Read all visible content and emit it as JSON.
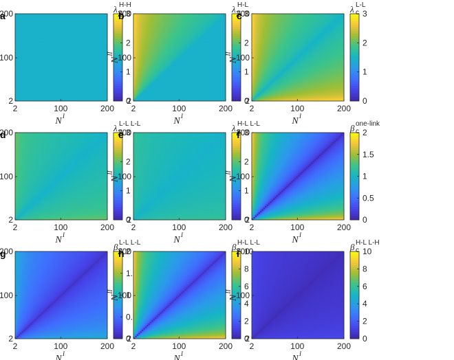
{
  "figure": {
    "panel_order": [
      "a",
      "b",
      "c",
      "d",
      "e",
      "f",
      "g",
      "h",
      "i"
    ]
  },
  "colormap": [
    "#3e26a8",
    "#4743e8",
    "#3f6ffe",
    "#2c99eb",
    "#17b5c5",
    "#3cc48b",
    "#9fbe35",
    "#f4c63b",
    "#f9fb0e"
  ],
  "panel_base_color": "#3f8bf0",
  "chart_data": [
    {
      "type": "heatmap",
      "label": "a",
      "cbar_symbol": "λ",
      "cbar_sub": "c",
      "cbar_sup": "H-H",
      "xlabel": "N",
      "xlabel_sup": "I",
      "ylabel": "N",
      "ylabel_sup": "II",
      "x_ticks": [
        "2",
        "100",
        "200"
      ],
      "y_ticks": [
        "2",
        "100",
        "200"
      ],
      "xlim": [
        2,
        200
      ],
      "ylim": [
        2,
        200
      ],
      "cbar_lim": [
        0,
        3
      ],
      "cbar_ticks": [
        "0",
        "1",
        "2",
        "3"
      ],
      "pattern": "uniform",
      "approx_value": 1.45
    },
    {
      "type": "heatmap",
      "label": "b",
      "cbar_symbol": "λ",
      "cbar_sub": "c",
      "cbar_sup": "H-L",
      "xlabel": "N",
      "xlabel_sup": "I",
      "ylabel": "N",
      "ylabel_sup": "II",
      "x_ticks": [
        "2",
        "100",
        "200"
      ],
      "y_ticks": [
        "2",
        "100",
        "200"
      ],
      "xlim": [
        2,
        200
      ],
      "ylim": [
        2,
        200
      ],
      "cbar_lim": [
        0,
        3
      ],
      "cbar_ticks": [
        "0",
        "1",
        "2",
        "3"
      ],
      "pattern": "upper-left-high",
      "min_value": 1.45,
      "max_value": 2.9
    },
    {
      "type": "heatmap",
      "label": "c",
      "cbar_symbol": "λ",
      "cbar_sub": "c",
      "cbar_sup": "L-L",
      "xlabel": "N",
      "xlabel_sup": "I",
      "ylabel": "N",
      "ylabel_sup": "II",
      "x_ticks": [
        "2",
        "100",
        "200"
      ],
      "y_ticks": [
        "2",
        "100",
        "200"
      ],
      "xlim": [
        2,
        200
      ],
      "ylim": [
        2,
        200
      ],
      "cbar_lim": [
        0,
        3
      ],
      "cbar_ticks": [
        "0",
        "1",
        "2",
        "3"
      ],
      "pattern": "off-diagonal-high",
      "min_value": 1.45,
      "max_value": 2.9
    },
    {
      "type": "heatmap",
      "label": "d",
      "cbar_symbol": "λ",
      "cbar_sub": "c",
      "cbar_sup": "L-L L-L",
      "xlabel": "N",
      "xlabel_sup": "I",
      "ylabel": "N",
      "ylabel_sup": "II",
      "x_ticks": [
        "2",
        "100",
        "200"
      ],
      "y_ticks": [
        "2",
        "100",
        "200"
      ],
      "xlim": [
        2,
        200
      ],
      "ylim": [
        2,
        200
      ],
      "cbar_lim": [
        0,
        3
      ],
      "cbar_ticks": [
        "0",
        "1",
        "2",
        "3"
      ],
      "pattern": "off-diagonal-high",
      "min_value": 1.45,
      "max_value": 2.1
    },
    {
      "type": "heatmap",
      "label": "e",
      "cbar_symbol": "λ",
      "cbar_sub": "c",
      "cbar_sup": "H-L L-L",
      "xlabel": "N",
      "xlabel_sup": "I",
      "ylabel": "N",
      "ylabel_sup": "II",
      "x_ticks": [
        "2",
        "100",
        "200"
      ],
      "y_ticks": [
        "2",
        "100",
        "200"
      ],
      "xlim": [
        2,
        200
      ],
      "ylim": [
        2,
        200
      ],
      "cbar_lim": [
        0,
        3
      ],
      "cbar_ticks": [
        "0",
        "1",
        "2",
        "3"
      ],
      "pattern": "off-diagonal-high",
      "min_value": 1.45,
      "max_value": 1.85
    },
    {
      "type": "heatmap",
      "label": "f",
      "cbar_symbol": "β",
      "cbar_sub": "c",
      "cbar_sup": "one-link",
      "xlabel": "N",
      "xlabel_sup": "I",
      "ylabel": "N",
      "ylabel_sup": "II",
      "x_ticks": [
        "2",
        "100",
        "200"
      ],
      "y_ticks": [
        "2",
        "100",
        "200"
      ],
      "xlim": [
        2,
        200
      ],
      "ylim": [
        2,
        200
      ],
      "cbar_lim": [
        0,
        2
      ],
      "cbar_ticks": [
        "0",
        "0.5",
        "1",
        "1.5",
        "2"
      ],
      "pattern": "diagonal-low",
      "min_value": 0.05,
      "max_value": 1.9
    },
    {
      "type": "heatmap",
      "label": "g",
      "cbar_symbol": "β",
      "cbar_sub": "c",
      "cbar_sup": "L-L L-L",
      "xlabel": "N",
      "xlabel_sup": "I",
      "ylabel": "N",
      "ylabel_sup": "II",
      "x_ticks": [
        "2",
        "100",
        "200"
      ],
      "y_ticks": [
        "2",
        "100",
        "200"
      ],
      "xlim": [
        2,
        200
      ],
      "ylim": [
        2,
        200
      ],
      "cbar_lim": [
        0,
        2
      ],
      "cbar_ticks": [
        "0",
        "0.5",
        "1",
        "1.5",
        "2"
      ],
      "pattern": "diagonal-low",
      "min_value": 0.1,
      "max_value": 1.0
    },
    {
      "type": "heatmap",
      "label": "h",
      "cbar_symbol": "β",
      "cbar_sub": "c",
      "cbar_sup": "H-L L-L",
      "xlabel": "N",
      "xlabel_sup": "I",
      "ylabel": "N",
      "ylabel_sup": "II",
      "x_ticks": [
        "2",
        "100",
        "200"
      ],
      "y_ticks": [
        "2",
        "100",
        "200"
      ],
      "xlim": [
        2,
        200
      ],
      "ylim": [
        2,
        200
      ],
      "cbar_lim": [
        0,
        10
      ],
      "cbar_ticks": [
        "0",
        "2",
        "4",
        "6",
        "8",
        "10"
      ],
      "pattern": "diagonal-low",
      "min_value": 0.5,
      "max_value": 9.5
    },
    {
      "type": "heatmap",
      "label": "i",
      "cbar_symbol": "β",
      "cbar_sub": "c",
      "cbar_sup": "H-L L-H",
      "xlabel": "N",
      "xlabel_sup": "I",
      "ylabel": "N",
      "ylabel_sup": "II",
      "x_ticks": [
        "2",
        "100",
        "200"
      ],
      "y_ticks": [
        "2",
        "100",
        "200"
      ],
      "xlim": [
        2,
        200
      ],
      "ylim": [
        2,
        200
      ],
      "cbar_lim": [
        0,
        10
      ],
      "cbar_ticks": [
        "0",
        "2",
        "4",
        "6",
        "8",
        "10"
      ],
      "pattern": "diagonal-low",
      "min_value": 0.3,
      "max_value": 1.5
    }
  ]
}
